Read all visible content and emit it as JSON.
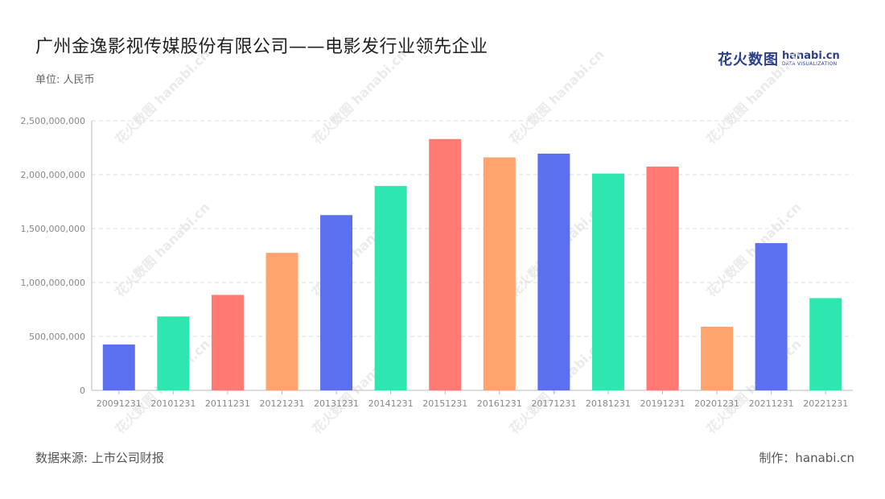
{
  "header": {
    "title": "广州金逸影视传媒股份有限公司——电影发行业领先企业",
    "unit": "单位: 人民币"
  },
  "logo": {
    "cn": "花火数图",
    "en": "hanabi.cn",
    "sub": "DATA VISUALIZATION"
  },
  "footer": {
    "source": "数据来源: 上市公司财报",
    "maker": "制作：hanabi.cn"
  },
  "colors": {
    "blue": "#5b6ff0",
    "green": "#2ee6b0",
    "red": "#ff7a72",
    "orange": "#ffa36f"
  },
  "chart_data": {
    "type": "bar",
    "categories": [
      "20091231",
      "20101231",
      "20111231",
      "20121231",
      "20131231",
      "20141231",
      "20151231",
      "20161231",
      "20171231",
      "20181231",
      "20191231",
      "20201231",
      "20211231",
      "20221231"
    ],
    "values": [
      425000000,
      685000000,
      885000000,
      1275000000,
      1625000000,
      1895000000,
      2330000000,
      2160000000,
      2195000000,
      2010000000,
      2075000000,
      590000000,
      1365000000,
      855000000
    ],
    "bar_colors": [
      "#5b6ff0",
      "#2ee6b0",
      "#ff7a72",
      "#ffa36f",
      "#5b6ff0",
      "#2ee6b0",
      "#ff7a72",
      "#ffa36f",
      "#5b6ff0",
      "#2ee6b0",
      "#ff7a72",
      "#ffa36f",
      "#5b6ff0",
      "#2ee6b0"
    ],
    "ylim": [
      0,
      2500000000
    ],
    "yticks": [
      0,
      500000000,
      1000000000,
      1500000000,
      2000000000,
      2500000000
    ],
    "ytick_labels": [
      "0",
      "500,000,000",
      "1,000,000,000",
      "1,500,000,000",
      "2,000,000,000",
      "2,500,000,000"
    ],
    "grid": true,
    "xlabel": "",
    "ylabel": ""
  }
}
